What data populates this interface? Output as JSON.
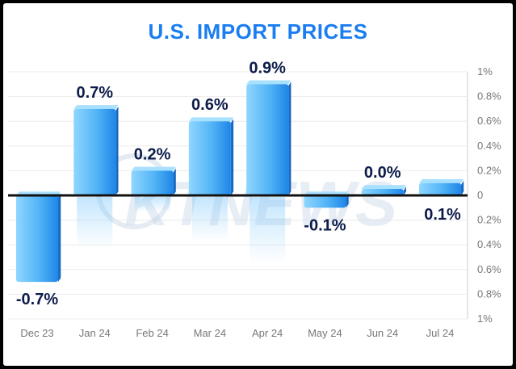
{
  "chart_data": {
    "type": "bar",
    "title": "U.S. IMPORT PRICES",
    "categories": [
      "Dec 23",
      "Jan 24",
      "Feb 24",
      "Mar 24",
      "Apr 24",
      "May 24",
      "Jun 24",
      "Jul 24"
    ],
    "values": [
      -0.7,
      0.7,
      0.2,
      0.6,
      0.9,
      -0.1,
      0.0,
      0.1
    ],
    "value_labels": [
      "-0.7%",
      "0.7%",
      "0.2%",
      "0.6%",
      "0.9%",
      "-0.1%",
      "0.0%",
      "0.1%"
    ],
    "yticks": [
      "1%",
      "0.8%",
      "0.6%",
      "0.4%",
      "0.2%",
      "0",
      "0.2%",
      "0.4%",
      "0.6%",
      "0.8%",
      "1%"
    ],
    "ylim": [
      -1,
      1
    ],
    "grid": true,
    "colors": {
      "title": "#1a7ef0",
      "bar_light": "#8fd6ff",
      "bar_dark": "#1f86e6",
      "label": "#0d1b4a",
      "axis_text": "#777777"
    }
  },
  "watermark": "KTNEWS"
}
